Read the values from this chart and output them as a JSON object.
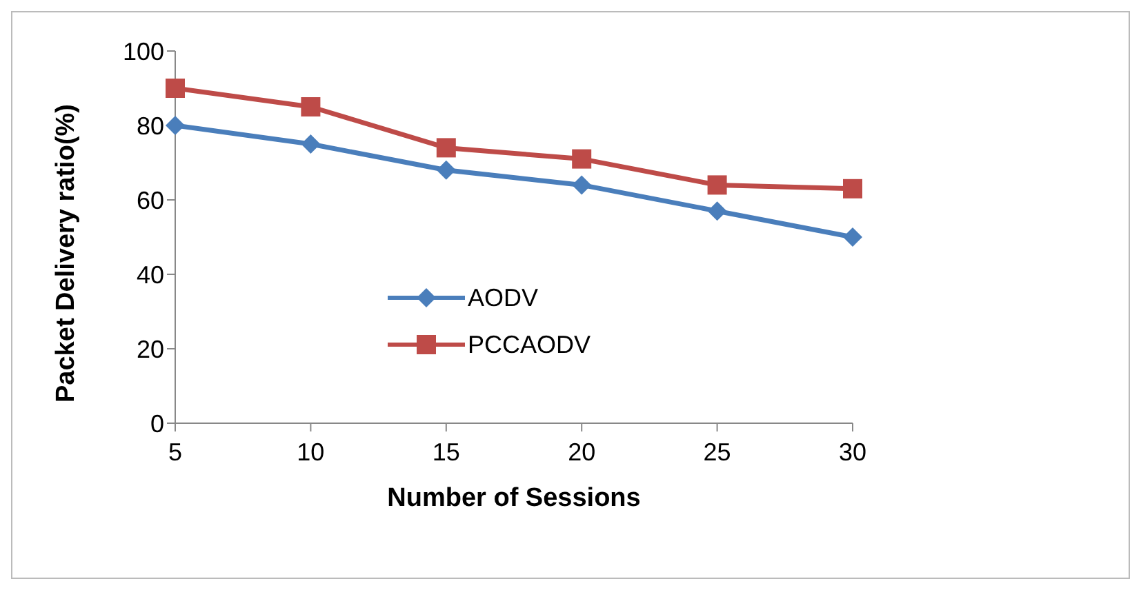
{
  "chart_data": {
    "type": "line",
    "xlabel": "Number of Sessions",
    "ylabel": "Packet Delivery ratio(%)",
    "categories": [
      "5",
      "10",
      "15",
      "20",
      "25",
      "30"
    ],
    "series": [
      {
        "name": "AODV",
        "color": "#4a7ebb",
        "marker": "diamond",
        "values": [
          80,
          75,
          68,
          64,
          57,
          50
        ]
      },
      {
        "name": "PCCAODV",
        "color": "#be4b48",
        "marker": "square",
        "values": [
          90,
          85,
          74,
          71,
          64,
          63
        ]
      }
    ],
    "ylim": [
      0,
      100
    ],
    "yticks": [
      0,
      20,
      40,
      60,
      80,
      100
    ],
    "grid": false,
    "legend": "bottom"
  }
}
